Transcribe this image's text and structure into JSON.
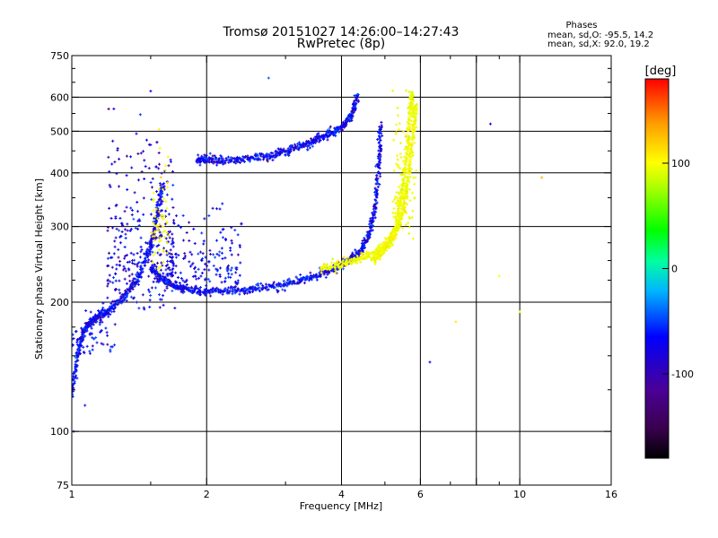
{
  "title": "Tromsø 20151027 14:26:00–14:27:43",
  "subtitle": "RwPretec (8p)",
  "stats": {
    "heading": "Phases",
    "line1": "mean, sd,O: -95.5, 14.2",
    "line2": "mean, sd,X:  92.0, 19.2"
  },
  "colorbar": {
    "unit_label": "[deg]",
    "tick_labels": [
      "100",
      "0",
      "-100"
    ],
    "tick_values": [
      100,
      0,
      -100
    ],
    "range": [
      -180,
      180
    ]
  },
  "chart_data": {
    "type": "scatter",
    "title": "Tromsø 20151027 14:26:00–14:27:43",
    "subtitle": "RwPretec (8p)",
    "xlabel": "Frequency [MHz]",
    "ylabel": "Stationary phase Virtual Height [km]",
    "x_scale": "log",
    "y_scale": "log",
    "xlim": [
      1,
      16
    ],
    "ylim": [
      75,
      750
    ],
    "x_ticks": [
      {
        "value": 1,
        "label": "1"
      },
      {
        "value": 2,
        "label": "2"
      },
      {
        "value": 4,
        "label": "4"
      },
      {
        "value": 6,
        "label": "6"
      },
      {
        "value": 8,
        "label": ""
      },
      {
        "value": 10,
        "label": "10"
      },
      {
        "value": 16,
        "label": "16"
      }
    ],
    "x_minor_ticks": [
      1.5,
      3,
      5,
      7,
      9
    ],
    "x_grid": [
      2,
      4,
      6,
      8,
      10
    ],
    "y_ticks": [
      {
        "value": 75,
        "label": "75"
      },
      {
        "value": 100,
        "label": "100"
      },
      {
        "value": 200,
        "label": "200"
      },
      {
        "value": 300,
        "label": "300"
      },
      {
        "value": 400,
        "label": "400"
      },
      {
        "value": 500,
        "label": "500"
      },
      {
        "value": 600,
        "label": "600"
      },
      {
        "value": 750,
        "label": "750"
      }
    ],
    "y_minor_ticks": [
      125,
      150,
      175,
      225,
      250,
      275,
      350,
      450,
      550,
      650,
      700
    ],
    "y_grid": [
      100,
      200,
      300,
      400,
      500,
      600
    ],
    "grid": true,
    "color_scale": "phase in degrees (rainbow: black/purple = -180, blue = -100, green = 0, yellow = 100, red = 180)",
    "series": [
      {
        "name": "O",
        "traces": [
          [
            [
              1.0,
              120
            ],
            [
              1.03,
              150
            ],
            [
              1.06,
              170
            ],
            [
              1.1,
              180
            ],
            [
              1.15,
              185
            ],
            [
              1.2,
              190
            ],
            [
              1.3,
              205
            ],
            [
              1.4,
              225
            ],
            [
              1.5,
              270
            ],
            [
              1.55,
              320
            ],
            [
              1.6,
              380
            ]
          ],
          [
            [
              1.5,
              240
            ],
            [
              1.6,
              225
            ],
            [
              1.7,
              218
            ],
            [
              1.8,
              214
            ],
            [
              2.0,
              212
            ],
            [
              2.3,
              213
            ],
            [
              2.6,
              215
            ],
            [
              3.0,
              220
            ],
            [
              3.4,
              228
            ],
            [
              3.8,
              238
            ],
            [
              4.1,
              248
            ],
            [
              4.4,
              262
            ],
            [
              4.6,
              285
            ],
            [
              4.75,
              330
            ],
            [
              4.85,
              420
            ],
            [
              4.9,
              520
            ]
          ],
          [
            [
              1.9,
              430
            ],
            [
              2.0,
              430
            ],
            [
              2.2,
              428
            ],
            [
              2.5,
              432
            ],
            [
              2.8,
              440
            ],
            [
              3.1,
              455
            ],
            [
              3.4,
              470
            ],
            [
              3.7,
              490
            ],
            [
              4.0,
              510
            ],
            [
              4.2,
              540
            ],
            [
              4.35,
              610
            ]
          ]
        ],
        "scatter_clusters": [
          {
            "x_range": [
              1.0,
              1.25
            ],
            "height_range": [
              150,
              200
            ],
            "phase": -100
          },
          {
            "x_range": [
              1.2,
              1.7
            ],
            "height_range": [
              190,
              520
            ],
            "phase": -105
          },
          {
            "x_range": [
              1.6,
              2.4
            ],
            "height_range": [
              215,
              330
            ],
            "phase": -100
          }
        ],
        "isolated_points": [
          {
            "x": 2.75,
            "y": 665,
            "phase": -80
          },
          {
            "x": 1.5,
            "y": 620,
            "phase": -100
          },
          {
            "x": 1.01,
            "y": 100,
            "phase": -110
          },
          {
            "x": 1.07,
            "y": 115,
            "phase": -95
          },
          {
            "x": 6.3,
            "y": 145,
            "phase": -100
          },
          {
            "x": 8.6,
            "y": 520,
            "phase": -100
          }
        ]
      },
      {
        "name": "X",
        "traces": [
          [
            [
              3.6,
              240
            ],
            [
              4.0,
              245
            ],
            [
              4.4,
              252
            ],
            [
              4.8,
              262
            ],
            [
              5.1,
              275
            ],
            [
              5.3,
              300
            ],
            [
              5.45,
              360
            ],
            [
              5.6,
              450
            ],
            [
              5.7,
              560
            ],
            [
              5.75,
              610
            ]
          ],
          [
            [
              4.7,
              250
            ],
            [
              5.0,
              265
            ],
            [
              5.3,
              290
            ],
            [
              5.5,
              330
            ],
            [
              5.65,
              400
            ],
            [
              5.8,
              500
            ],
            [
              5.85,
              580
            ]
          ]
        ],
        "scatter_clusters": [
          {
            "x_range": [
              5.2,
              5.9
            ],
            "height_range": [
              280,
              600
            ],
            "phase": 95
          },
          {
            "x_range": [
              1.5,
              1.65
            ],
            "height_range": [
              230,
              480
            ],
            "phase": 100
          }
        ],
        "isolated_points": [
          {
            "x": 11.2,
            "y": 390,
            "phase": 130
          },
          {
            "x": 10.0,
            "y": 190,
            "phase": 100
          },
          {
            "x": 7.2,
            "y": 180,
            "phase": 110
          },
          {
            "x": 9.0,
            "y": 230,
            "phase": 100
          }
        ]
      }
    ]
  }
}
